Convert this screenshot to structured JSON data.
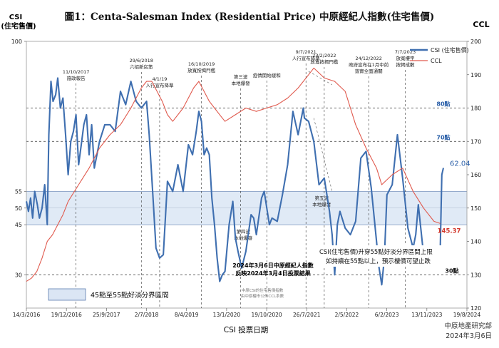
{
  "chart_data": {
    "type": "line",
    "title": "圖1：Centa-Salesman Index (Residential Price) 中原經紀人指數(住宅售價)",
    "left_axis": {
      "label_line1": "CSI",
      "label_line2": "(住宅售價)",
      "ylim": [
        20,
        100
      ],
      "ticks": [
        30,
        45,
        50,
        55,
        100
      ]
    },
    "right_axis": {
      "label": "CCL",
      "ylim": [
        120,
        200
      ],
      "ticks": [
        120,
        130,
        140,
        150,
        160,
        170,
        180,
        190,
        200
      ]
    },
    "xlabel": "CSI 投票日期",
    "x_ticks": [
      "14/3/2016",
      "19/12/2016",
      "25/9/2017",
      "2/7/2018",
      "8/4/2019",
      "13/1/2020",
      "19/10/2020",
      "26/7/2021",
      "2/5/2022",
      "6/2/2023",
      "13/11/2023",
      "19/8/2024"
    ],
    "x_range": [
      2016.2,
      2024.63
    ],
    "band": {
      "low": 45,
      "high": 55,
      "legend": "45點至55點好淡分界區間"
    },
    "legend": [
      {
        "name": "CSI (住宅售價)",
        "color": "#3f6fb0"
      },
      {
        "name": "CCL",
        "color": "#e05a4e"
      }
    ],
    "series": [
      {
        "name": "CSI (住宅售價)",
        "axis": "left",
        "color": "#3f6fb0",
        "x": [
          2016.2,
          2016.24,
          2016.28,
          2016.32,
          2016.36,
          2016.41,
          2016.45,
          2016.5,
          2016.55,
          2016.6,
          2016.63,
          2016.67,
          2016.71,
          2016.76,
          2016.8,
          2016.85,
          2016.9,
          2016.95,
          2017.0,
          2017.05,
          2017.1,
          2017.15,
          2017.2,
          2017.25,
          2017.3,
          2017.35,
          2017.4,
          2017.45,
          2017.5,
          2017.6,
          2017.7,
          2017.8,
          2017.9,
          2018.0,
          2018.1,
          2018.2,
          2018.3,
          2018.4,
          2018.5,
          2018.55,
          2018.62,
          2018.68,
          2018.75,
          2018.82,
          2018.9,
          2019.0,
          2019.1,
          2019.2,
          2019.3,
          2019.38,
          2019.45,
          2019.5,
          2019.55,
          2019.6,
          2019.65,
          2019.7,
          2019.75,
          2019.8,
          2019.85,
          2019.9,
          2019.95,
          2020.0,
          2020.08,
          2020.15,
          2020.2,
          2020.25,
          2020.32,
          2020.4,
          2020.5,
          2020.55,
          2020.6,
          2020.7,
          2020.75,
          2020.85,
          2020.9,
          2021.0,
          2021.1,
          2021.2,
          2021.3,
          2021.4,
          2021.5,
          2021.52,
          2021.6,
          2021.7,
          2021.8,
          2021.9,
          2022.0,
          2022.05,
          2022.1,
          2022.15,
          2022.2,
          2022.3,
          2022.4,
          2022.5,
          2022.6,
          2022.7,
          2022.8,
          2022.9,
          2022.95,
          2023.0,
          2023.05,
          2023.1,
          2023.2,
          2023.3,
          2023.4,
          2023.5,
          2023.6,
          2023.65,
          2023.7,
          2023.8,
          2023.9,
          2023.95,
          2024.0,
          2024.05,
          2024.1,
          2024.12,
          2024.15,
          2024.18
        ],
        "values": [
          52,
          49,
          53,
          47,
          55,
          51,
          47,
          50,
          57,
          45,
          72,
          88,
          82,
          84,
          89,
          80,
          83,
          72,
          60,
          70,
          73,
          78,
          63,
          69,
          75,
          78,
          66,
          75,
          62,
          70,
          75,
          75,
          73,
          85,
          81,
          88,
          82,
          80,
          82,
          72,
          54,
          38,
          35,
          36,
          58,
          55,
          63,
          55,
          69,
          66,
          73,
          79,
          76,
          66,
          68,
          66,
          53,
          45,
          35,
          28,
          30,
          31,
          45,
          52,
          41,
          37,
          32,
          37,
          48,
          47,
          42,
          53,
          55,
          45,
          47,
          46,
          54,
          63,
          79,
          72,
          80,
          77,
          76,
          70,
          57,
          59,
          49,
          42,
          30,
          45,
          49,
          44,
          42,
          46,
          65,
          67,
          56,
          40,
          32,
          27,
          35,
          54,
          57,
          72,
          59,
          44,
          38,
          42,
          51,
          36,
          34,
          36,
          38,
          36,
          34,
          38,
          60,
          62.04
        ]
      },
      {
        "name": "CCL",
        "axis": "right",
        "color": "#e05a4e",
        "x": [
          2016.2,
          2016.3,
          2016.4,
          2016.5,
          2016.6,
          2016.7,
          2016.8,
          2016.9,
          2017.0,
          2017.2,
          2017.4,
          2017.6,
          2017.8,
          2018.0,
          2018.2,
          2018.4,
          2018.5,
          2018.6,
          2018.7,
          2018.8,
          2018.9,
          2019.0,
          2019.2,
          2019.4,
          2019.5,
          2019.6,
          2019.7,
          2019.8,
          2019.9,
          2020.0,
          2020.2,
          2020.4,
          2020.6,
          2020.8,
          2021.0,
          2021.2,
          2021.4,
          2021.6,
          2021.7,
          2021.9,
          2022.1,
          2022.3,
          2022.5,
          2022.7,
          2022.9,
          2023.0,
          2023.2,
          2023.4,
          2023.6,
          2023.8,
          2024.0,
          2024.12
        ],
        "values": [
          128,
          129,
          131,
          135,
          140,
          142,
          145,
          148,
          152,
          157,
          162,
          168,
          172,
          175,
          180,
          186,
          188,
          188,
          185,
          182,
          178,
          176,
          180,
          186,
          188,
          185,
          182,
          180,
          178,
          176,
          178,
          180,
          179,
          180,
          181,
          183,
          186,
          190,
          192,
          189,
          188,
          185,
          175,
          168,
          162,
          157,
          160,
          162,
          155,
          150,
          146,
          145.37
        ]
      }
    ],
    "annotations": [
      {
        "x": 2017.15,
        "lines": [
          "11/10/2017",
          "施政報告"
        ]
      },
      {
        "x": 2018.4,
        "lines": [
          "29/6/2018",
          "六招新房策"
        ]
      },
      {
        "x": 2018.75,
        "lines": [
          "4/1/19",
          "人行宣布降準"
        ]
      },
      {
        "x": 2019.55,
        "lines": [
          "16/10/2019",
          "放寬按揭門檻"
        ]
      },
      {
        "x": 2020.3,
        "lines": [
          "第三波",
          "本地爆發"
        ]
      },
      {
        "x": 2020.8,
        "lines": [
          "疫情開始緩和"
        ]
      },
      {
        "x": 2021.55,
        "lines": [
          "9/7/2021",
          "人行宣布降準"
        ]
      },
      {
        "x": 2021.9,
        "lines": [
          "23/2/2022",
          "放寬按揭門檻"
        ]
      },
      {
        "x": 2022.75,
        "lines": [
          "24/12/2022",
          "政府宣布在1月中前",
          "落實全面通關"
        ]
      },
      {
        "x": 2023.45,
        "lines": [
          "7/7/2023",
          "放寬樓宇",
          "按揭成數"
        ]
      },
      {
        "x": 2020.35,
        "lines": [
          "第四波",
          "本地爆發"
        ]
      },
      {
        "x": 2021.85,
        "lines": [
          "第五波",
          "本地爆發"
        ]
      }
    ],
    "level_labels": [
      {
        "value": 80,
        "label": "80點"
      },
      {
        "value": 70,
        "label": "70點"
      },
      {
        "value": 30,
        "label": "30點"
      }
    ],
    "end_labels": {
      "csi": "62.04",
      "ccl": "145.37"
    },
    "notes": {
      "survey": [
        "2024年3月6日中原經紀人指數",
        "反映2024年3月4日投票結果"
      ],
      "box": [
        "CSI(住宅售價)升穿55點好淡分界區間上限",
        "如持續在55點以上，預示樓價可望止跌"
      ],
      "source": [
        "中原CSI的住宅售價指數",
        "由中原樓市公佈CCL系數"
      ]
    },
    "footer": [
      "中原地產研究部",
      "2024年3月6日"
    ]
  }
}
